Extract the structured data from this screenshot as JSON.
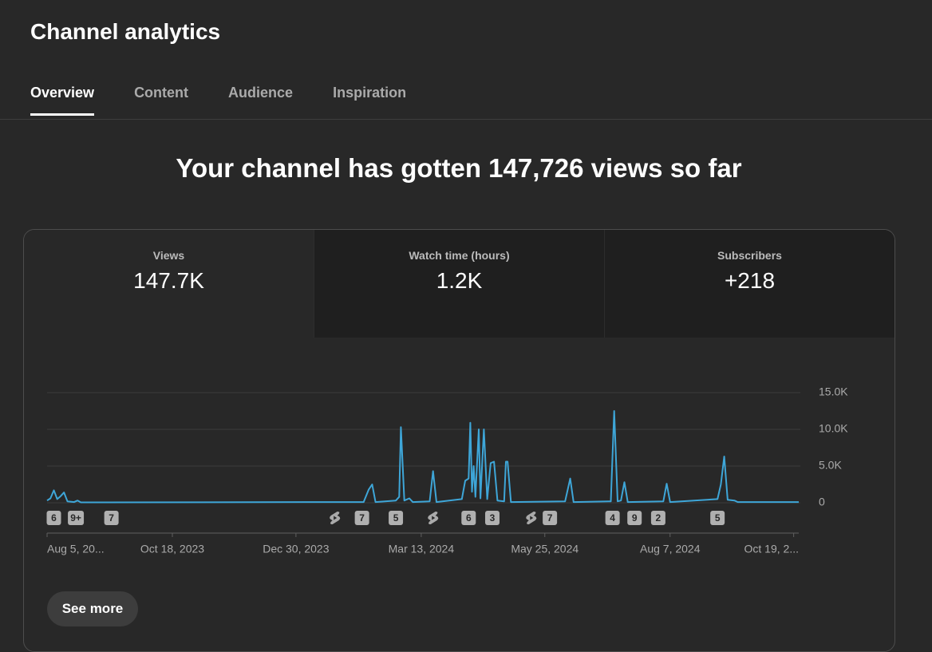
{
  "header": {
    "title": "Channel analytics"
  },
  "tabs": [
    "Overview",
    "Content",
    "Audience",
    "Inspiration"
  ],
  "headline": "Your channel has gotten 147,726 views so far",
  "metrics": [
    {
      "label": "Views",
      "value": "147.7K"
    },
    {
      "label": "Watch time (hours)",
      "value": "1.2K"
    },
    {
      "label": "Subscribers",
      "value": "+218"
    }
  ],
  "chart_data": {
    "type": "line",
    "xlim": [
      "2023-08-05",
      "2024-10-22"
    ],
    "xticks": [
      {
        "value": "2023-08-05",
        "label": "Aug 5, 20..."
      },
      {
        "value": "2023-10-18",
        "label": "Oct 18, 2023"
      },
      {
        "value": "2023-12-30",
        "label": "Dec 30, 2023"
      },
      {
        "value": "2024-03-13",
        "label": "Mar 13, 2024"
      },
      {
        "value": "2024-05-25",
        "label": "May 25, 2024"
      },
      {
        "value": "2024-08-07",
        "label": "Aug 7, 2024"
      },
      {
        "value": "2024-10-19",
        "label": "Oct 19, 2..."
      }
    ],
    "ylim": [
      0,
      15000
    ],
    "yticks": [
      {
        "value": 15000,
        "label": "15.0K"
      },
      {
        "value": 10000,
        "label": "10.0K"
      },
      {
        "value": 5000,
        "label": "5.0K"
      },
      0
    ],
    "grid": true,
    "series": [
      {
        "name": "Views",
        "color": "#3ea6d8",
        "x": [
          "2023-08-05",
          "2023-08-07",
          "2023-08-09",
          "2023-08-11",
          "2023-08-13",
          "2023-08-15",
          "2023-08-17",
          "2023-08-21",
          "2023-08-23",
          "2023-08-25",
          "2024-02-08",
          "2024-02-11",
          "2024-02-13",
          "2024-02-15",
          "2024-02-27",
          "2024-02-29",
          "2024-03-01",
          "2024-03-03",
          "2024-03-06",
          "2024-03-08",
          "2024-03-18",
          "2024-03-20",
          "2024-03-22",
          "2024-04-06",
          "2024-04-08",
          "2024-04-10",
          "2024-04-11",
          "2024-04-12",
          "2024-04-13",
          "2024-04-14",
          "2024-04-16",
          "2024-04-17",
          "2024-04-19",
          "2024-04-21",
          "2024-04-23",
          "2024-04-25",
          "2024-04-27",
          "2024-05-01",
          "2024-05-02",
          "2024-05-03",
          "2024-05-05",
          "2024-06-06",
          "2024-06-09",
          "2024-06-11",
          "2024-07-03",
          "2024-07-05",
          "2024-07-07",
          "2024-07-09",
          "2024-07-11",
          "2024-07-13",
          "2024-08-03",
          "2024-08-05",
          "2024-08-07",
          "2024-09-04",
          "2024-09-06",
          "2024-09-08",
          "2024-09-10",
          "2024-09-14",
          "2024-09-16",
          "2024-10-22"
        ],
        "values": [
          300,
          600,
          1700,
          500,
          900,
          1400,
          200,
          100,
          300,
          50,
          100,
          1800,
          2500,
          100,
          300,
          800,
          10300,
          300,
          600,
          100,
          200,
          4300,
          100,
          500,
          3000,
          3300,
          10900,
          1500,
          5000,
          800,
          10000,
          600,
          10000,
          500,
          5400,
          5600,
          300,
          200,
          5600,
          5600,
          100,
          200,
          3300,
          100,
          200,
          12500,
          200,
          300,
          2800,
          100,
          200,
          2600,
          100,
          500,
          2500,
          6300,
          400,
          300,
          100,
          100
        ]
      }
    ],
    "markers": [
      {
        "x": "2023-08-09",
        "label": 6
      },
      {
        "x": "2023-08-22",
        "label": "9+"
      },
      {
        "x": "2023-09-12",
        "label": 7
      },
      {
        "x": "2024-01-22",
        "label": null
      },
      {
        "x": "2024-02-07",
        "label": 7
      },
      {
        "x": "2024-02-27",
        "label": 5
      },
      {
        "x": "2024-03-20",
        "label": null
      },
      {
        "x": "2024-04-10",
        "label": 6
      },
      {
        "x": "2024-04-24",
        "label": 3
      },
      {
        "x": "2024-05-17",
        "label": null
      },
      {
        "x": "2024-05-28",
        "label": 7
      },
      {
        "x": "2024-07-04",
        "label": 4
      },
      {
        "x": "2024-07-17",
        "label": 9
      },
      {
        "x": "2024-07-31",
        "label": 2
      },
      {
        "x": "2024-09-04",
        "label": 5
      }
    ]
  },
  "button": "See more"
}
